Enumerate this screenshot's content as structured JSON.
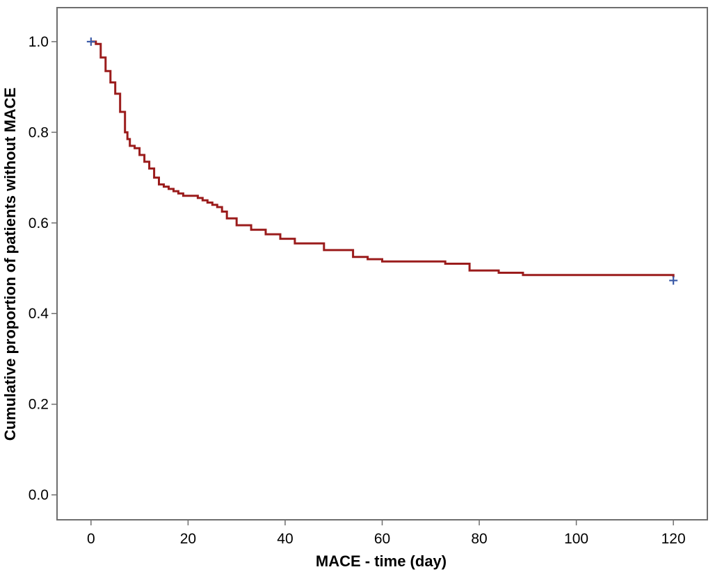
{
  "chart_data": {
    "type": "line",
    "title": "",
    "xlabel": "MACE - time  (day)",
    "ylabel": "Cumulative proportion of patients without MACE",
    "xlim": [
      -7,
      127
    ],
    "ylim": [
      -0.055,
      1.075
    ],
    "xticks": [
      0,
      20,
      40,
      60,
      80,
      100,
      120
    ],
    "yticks": [
      0.0,
      0.2,
      0.4,
      0.6,
      0.8,
      1.0
    ],
    "xtick_labels": [
      "0",
      "20",
      "40",
      "60",
      "80",
      "100",
      "120"
    ],
    "ytick_labels": [
      "0.0",
      "0.2",
      "0.4",
      "0.6",
      "0.8",
      "1.0"
    ],
    "grid": false,
    "legend": "none",
    "series": [
      {
        "color": "#9b1c1c",
        "step": true,
        "x": [
          0,
          1,
          2,
          3,
          4,
          5,
          6,
          7,
          7.5,
          8,
          9,
          10,
          11,
          12,
          13,
          14,
          15,
          16,
          17,
          18,
          19,
          21,
          22,
          23,
          24,
          25,
          26,
          27,
          28,
          30,
          33,
          36,
          39,
          42,
          48,
          54,
          57,
          60,
          73,
          78,
          84,
          89,
          120
        ],
        "y": [
          1.0,
          0.995,
          0.965,
          0.935,
          0.91,
          0.885,
          0.845,
          0.8,
          0.785,
          0.77,
          0.765,
          0.75,
          0.735,
          0.72,
          0.7,
          0.685,
          0.68,
          0.675,
          0.67,
          0.665,
          0.66,
          0.66,
          0.655,
          0.65,
          0.645,
          0.64,
          0.635,
          0.625,
          0.61,
          0.595,
          0.585,
          0.575,
          0.565,
          0.555,
          0.54,
          0.525,
          0.52,
          0.515,
          0.51,
          0.495,
          0.49,
          0.485,
          0.48
        ]
      }
    ],
    "censor_marks": {
      "color": "#3b5ba8",
      "points": [
        [
          0,
          1.0
        ],
        [
          120,
          0.473
        ]
      ]
    },
    "frame_color": "#6e6e6e"
  }
}
